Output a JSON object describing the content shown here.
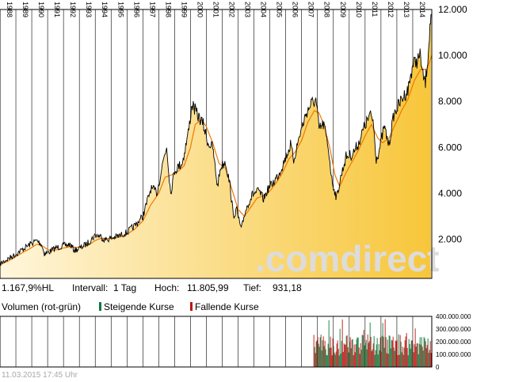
{
  "info": {
    "performance": "1.167,9%HL",
    "interval_label": "Intervall:",
    "interval_value": "1 Tag",
    "high_label": "Hoch:",
    "high_value": "11.805,99",
    "low_label": "Tief:",
    "low_value": "931,18"
  },
  "volume_legend": {
    "title": "Volumen (rot-grün)",
    "rising": "Steigende Kurse",
    "falling": "Fallende Kurse"
  },
  "timestamp": "11.03.2015 17:45 Uhr",
  "watermark": ".comdirect",
  "colors": {
    "price_line": "#000000",
    "average_line": "#f07800",
    "fill_light": "#fff6dc",
    "fill_dark": "#f7c63a",
    "rising": "#0a7a3a",
    "falling": "#c01010",
    "grid": "#000000",
    "watermark": "#dcdcdc"
  },
  "chart_data": [
    {
      "type": "line",
      "x_ticks": [
        "1988",
        "1989",
        "1990",
        "1991",
        "1992",
        "1993",
        "1994",
        "1995",
        "1996",
        "1997",
        "1998",
        "1999",
        "2000",
        "2001",
        "2002",
        "2003",
        "2004",
        "2005",
        "2006",
        "2007",
        "2008",
        "2009",
        "2010",
        "2011",
        "2012",
        "2013",
        "2014"
      ],
      "y_ticks": [
        "2.000",
        "4.000",
        "6.000",
        "8.000",
        "10.000",
        "12.000"
      ],
      "y_tick_values": [
        2000,
        4000,
        6000,
        8000,
        10000,
        12000
      ],
      "xlim": [
        1988.0,
        2015.2
      ],
      "ylim": [
        300,
        12000
      ],
      "grid": true,
      "series": [
        {
          "points": [
            [
              1988.0,
              930
            ],
            [
              1988.5,
              1150
            ],
            [
              1989.0,
              1350
            ],
            [
              1989.5,
              1600
            ],
            [
              1989.9,
              1790
            ],
            [
              1990.3,
              1950
            ],
            [
              1990.6,
              1800
            ],
            [
              1990.8,
              1380
            ],
            [
              1991.1,
              1450
            ],
            [
              1991.5,
              1620
            ],
            [
              1992.0,
              1720
            ],
            [
              1992.4,
              1780
            ],
            [
              1992.7,
              1520
            ],
            [
              1993.0,
              1600
            ],
            [
              1993.5,
              1820
            ],
            [
              1994.0,
              2180
            ],
            [
              1994.3,
              2150
            ],
            [
              1994.6,
              1980
            ],
            [
              1995.0,
              2050
            ],
            [
              1995.5,
              2150
            ],
            [
              1996.0,
              2300
            ],
            [
              1996.5,
              2600
            ],
            [
              1997.0,
              3000
            ],
            [
              1997.5,
              4200
            ],
            [
              1997.9,
              4050
            ],
            [
              1998.3,
              5500
            ],
            [
              1998.5,
              6050
            ],
            [
              1998.75,
              4000
            ],
            [
              1999.0,
              5000
            ],
            [
              1999.5,
              5350
            ],
            [
              1999.9,
              6800
            ],
            [
              2000.1,
              7900
            ],
            [
              2000.4,
              7450
            ],
            [
              2000.8,
              7000
            ],
            [
              2001.1,
              6200
            ],
            [
              2001.4,
              6000
            ],
            [
              2001.7,
              4300
            ],
            [
              2001.9,
              5150
            ],
            [
              2002.2,
              5400
            ],
            [
              2002.5,
              4300
            ],
            [
              2002.7,
              3000
            ],
            [
              2002.9,
              3300
            ],
            [
              2003.2,
              2400
            ],
            [
              2003.4,
              3100
            ],
            [
              2003.6,
              3500
            ],
            [
              2003.9,
              3950
            ],
            [
              2004.3,
              4100
            ],
            [
              2004.6,
              3750
            ],
            [
              2004.9,
              4200
            ],
            [
              2005.3,
              4550
            ],
            [
              2005.6,
              4900
            ],
            [
              2005.9,
              5400
            ],
            [
              2006.3,
              6100
            ],
            [
              2006.5,
              5450
            ],
            [
              2006.9,
              6600
            ],
            [
              2007.3,
              7500
            ],
            [
              2007.6,
              7900
            ],
            [
              2007.9,
              8050
            ],
            [
              2008.1,
              6800
            ],
            [
              2008.4,
              7000
            ],
            [
              2008.7,
              5900
            ],
            [
              2008.9,
              4600
            ],
            [
              2009.2,
              3800
            ],
            [
              2009.5,
              4800
            ],
            [
              2009.8,
              5600
            ],
            [
              2010.2,
              5700
            ],
            [
              2010.6,
              6200
            ],
            [
              2010.9,
              6800
            ],
            [
              2011.3,
              7400
            ],
            [
              2011.5,
              7200
            ],
            [
              2011.7,
              5500
            ],
            [
              2011.9,
              5900
            ],
            [
              2012.2,
              6900
            ],
            [
              2012.5,
              6100
            ],
            [
              2012.8,
              7400
            ],
            [
              2013.0,
              7700
            ],
            [
              2013.4,
              8200
            ],
            [
              2013.7,
              8500
            ],
            [
              2014.0,
              9600
            ],
            [
              2014.3,
              9800
            ],
            [
              2014.5,
              10000
            ],
            [
              2014.6,
              9200
            ],
            [
              2014.8,
              8800
            ],
            [
              2014.95,
              9900
            ],
            [
              2015.05,
              10900
            ],
            [
              2015.15,
              11800
            ]
          ]
        },
        {
          "points": [
            [
              1988.0,
              900
            ],
            [
              1988.5,
              1050
            ],
            [
              1989.0,
              1250
            ],
            [
              1989.5,
              1450
            ],
            [
              1989.9,
              1600
            ],
            [
              1990.3,
              1780
            ],
            [
              1990.6,
              1750
            ],
            [
              1990.9,
              1600
            ],
            [
              1991.2,
              1500
            ],
            [
              1991.6,
              1550
            ],
            [
              1992.0,
              1620
            ],
            [
              1992.4,
              1680
            ],
            [
              1992.8,
              1650
            ],
            [
              1993.2,
              1680
            ],
            [
              1993.6,
              1760
            ],
            [
              1994.0,
              1950
            ],
            [
              1994.4,
              2050
            ],
            [
              1994.8,
              2030
            ],
            [
              1995.2,
              2040
            ],
            [
              1995.6,
              2120
            ],
            [
              1996.0,
              2220
            ],
            [
              1996.5,
              2450
            ],
            [
              1997.0,
              2800
            ],
            [
              1997.5,
              3500
            ],
            [
              1998.0,
              4000
            ],
            [
              1998.4,
              4700
            ],
            [
              1998.8,
              4800
            ],
            [
              1999.2,
              4950
            ],
            [
              1999.6,
              5200
            ],
            [
              2000.0,
              6000
            ],
            [
              2000.3,
              7000
            ],
            [
              2000.7,
              7200
            ],
            [
              2001.0,
              6900
            ],
            [
              2001.4,
              6200
            ],
            [
              2001.8,
              5300
            ],
            [
              2002.2,
              5100
            ],
            [
              2002.6,
              4200
            ],
            [
              2003.0,
              3300
            ],
            [
              2003.4,
              3000
            ],
            [
              2003.8,
              3400
            ],
            [
              2004.2,
              3800
            ],
            [
              2004.6,
              3900
            ],
            [
              2005.0,
              4100
            ],
            [
              2005.4,
              4450
            ],
            [
              2005.8,
              4900
            ],
            [
              2006.2,
              5500
            ],
            [
              2006.6,
              5800
            ],
            [
              2007.0,
              6300
            ],
            [
              2007.4,
              7100
            ],
            [
              2007.8,
              7600
            ],
            [
              2008.1,
              7500
            ],
            [
              2008.4,
              7000
            ],
            [
              2008.8,
              5900
            ],
            [
              2009.1,
              4800
            ],
            [
              2009.4,
              4300
            ],
            [
              2009.8,
              4900
            ],
            [
              2010.2,
              5400
            ],
            [
              2010.6,
              5900
            ],
            [
              2011.0,
              6500
            ],
            [
              2011.4,
              7000
            ],
            [
              2011.8,
              6400
            ],
            [
              2012.1,
              6200
            ],
            [
              2012.5,
              6400
            ],
            [
              2012.9,
              7000
            ],
            [
              2013.3,
              7600
            ],
            [
              2013.7,
              8100
            ],
            [
              2014.1,
              8900
            ],
            [
              2014.5,
              9400
            ],
            [
              2014.9,
              9400
            ],
            [
              2015.2,
              10000
            ]
          ]
        }
      ]
    },
    {
      "type": "bar",
      "y_ticks": [
        "0",
        "100.000.000",
        "200.000.000",
        "300.000.000",
        "400.000.000"
      ],
      "ylim": [
        0,
        400000000
      ],
      "x_start": 2007.75,
      "x_end": 2015.2
    }
  ]
}
